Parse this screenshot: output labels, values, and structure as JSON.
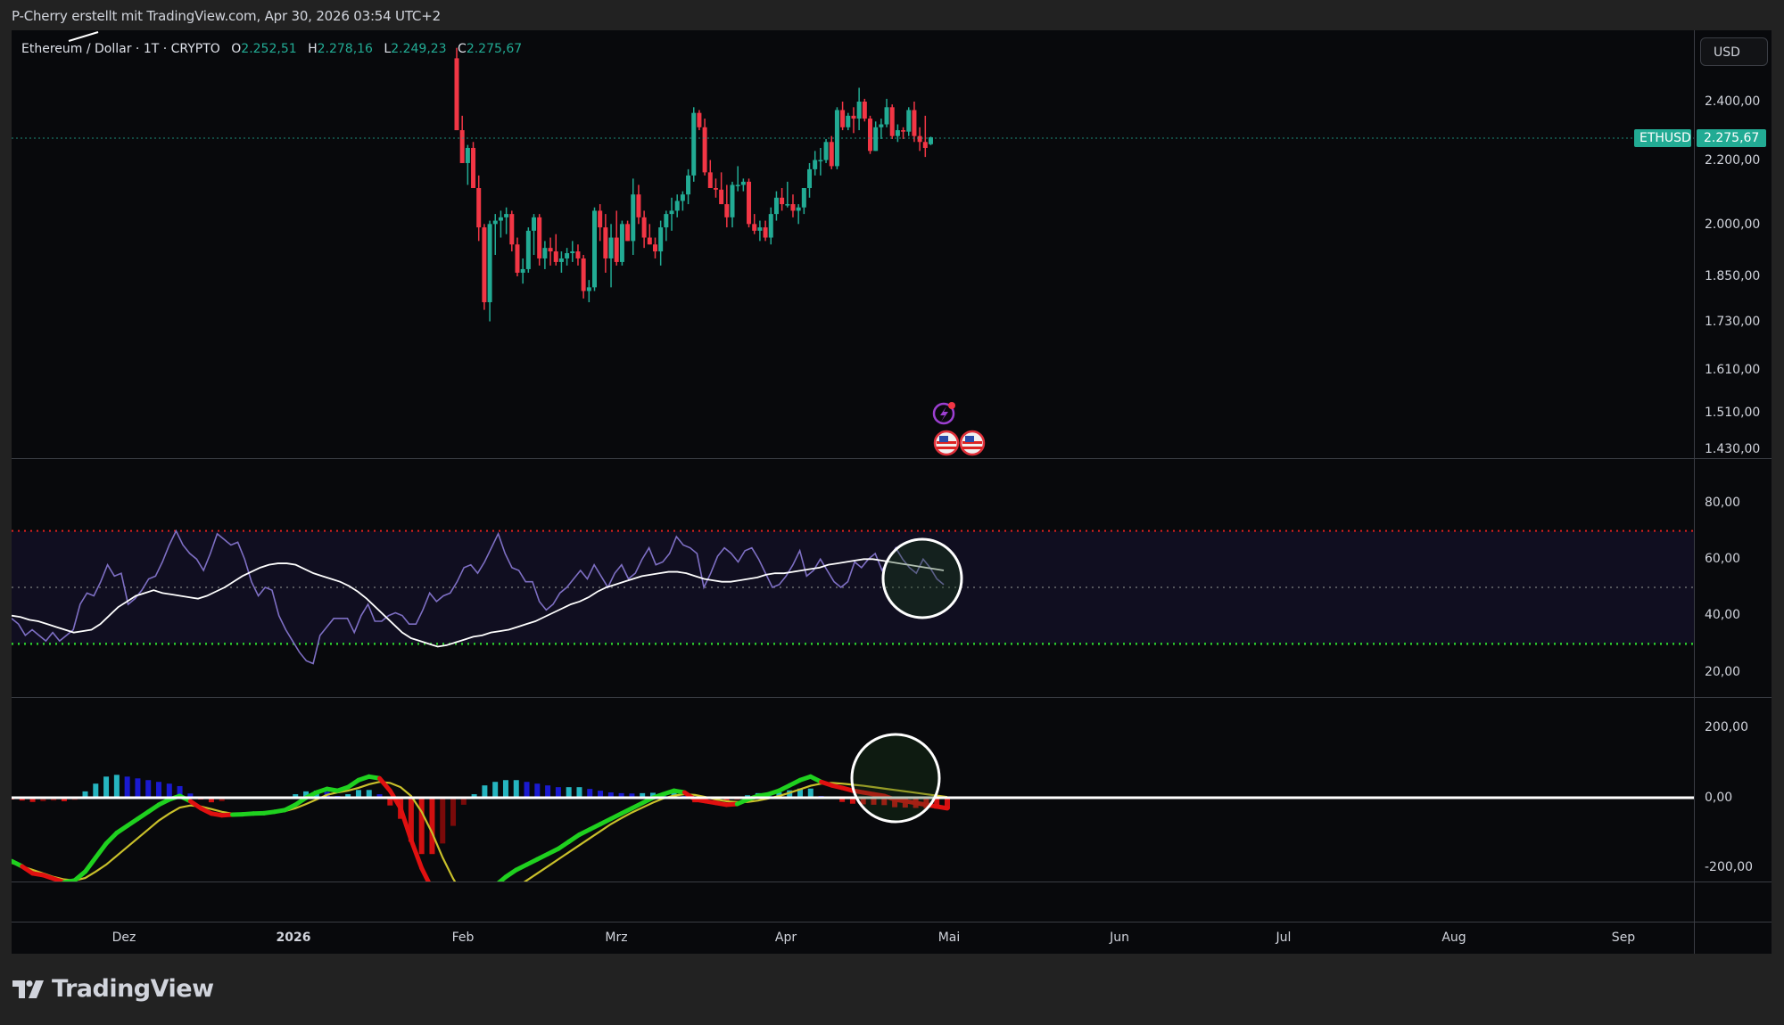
{
  "header": {
    "credit": "P-Cherry erstellt mit TradingView.com, Apr 30, 2026 03:54 UTC+2"
  },
  "legend": {
    "symbol": "Ethereum / Dollar · 1T · CRYPTO",
    "o_label": "O",
    "o_value": "2.252,51",
    "h_label": "H",
    "h_value": "2.278,16",
    "l_label": "L",
    "l_value": "2.249,23",
    "c_label": "C",
    "c_value": "2.275,67"
  },
  "currency_button": "USD",
  "price_tag": {
    "symbol": "ETHUSD",
    "value": "2.275,67",
    "color": "#22ab94"
  },
  "price_axis": [
    "2.400,00",
    "2.200,00",
    "2.000,00",
    "1.850,00",
    "1.730,00",
    "1.610,00",
    "1.510,00",
    "1.430,00"
  ],
  "rsi_axis": [
    "80,00",
    "60,00",
    "40,00",
    "20,00"
  ],
  "macd_axis": [
    "200,00",
    "0,00",
    "-200,00"
  ],
  "time_axis": [
    {
      "label": "Dez",
      "bold": false
    },
    {
      "label": "2026",
      "bold": true
    },
    {
      "label": "Feb",
      "bold": false
    },
    {
      "label": "Mrz",
      "bold": false
    },
    {
      "label": "Apr",
      "bold": false
    },
    {
      "label": "Mai",
      "bold": false
    },
    {
      "label": "Jun",
      "bold": false
    },
    {
      "label": "Jul",
      "bold": false
    },
    {
      "label": "Aug",
      "bold": false
    },
    {
      "label": "Sep",
      "bold": false
    }
  ],
  "brand": "TradingView",
  "colors": {
    "up": "#22ab94",
    "down": "#f23645",
    "rsi": "#7e6fc4",
    "rsi_ma": "#ffffff",
    "overbought": "#e0201f",
    "oversold": "#2ed12e",
    "macd_up": "#1fd11f",
    "macd_down": "#e01010",
    "signal": "#c9c02a",
    "hist_pos_strong": "#26b5c0",
    "hist_pos_weak": "#1a1ad0",
    "hist_neg_strong": "#d01010",
    "hist_neg_weak": "#7a0a0a"
  },
  "chart_data": [
    {
      "type": "candlestick",
      "title": "Ethereum / Dollar · 1T · CRYPTO",
      "ylabel": "USD",
      "yscale": "log",
      "ylim": [
        1430,
        2560
      ],
      "x_ticks": [
        "Dez",
        "2026",
        "Feb",
        "Mrz",
        "Apr",
        "Mai",
        "Jun",
        "Jul",
        "Aug",
        "Sep"
      ],
      "last": {
        "open": 2252.51,
        "high": 2278.16,
        "low": 2249.23,
        "close": 2275.67
      },
      "candles": [
        [
          2560,
          2600,
          2300,
          2300
        ],
        [
          2300,
          2350,
          2190,
          2190
        ],
        [
          2190,
          2250,
          2120,
          2240
        ],
        [
          2240,
          2260,
          2110,
          2110
        ],
        [
          2110,
          2150,
          1950,
          1990
        ],
        [
          1990,
          2000,
          1760,
          1780
        ],
        [
          1780,
          2010,
          1730,
          2000
        ],
        [
          2000,
          2030,
          1910,
          2010
        ],
        [
          2010,
          2040,
          1960,
          2020
        ],
        [
          2020,
          2050,
          1970,
          2030
        ],
        [
          2030,
          2040,
          1920,
          1940
        ],
        [
          1940,
          1960,
          1850,
          1860
        ],
        [
          1860,
          1900,
          1830,
          1870
        ],
        [
          1870,
          1990,
          1860,
          1980
        ],
        [
          1980,
          2030,
          1910,
          2020
        ],
        [
          2020,
          2030,
          1880,
          1900
        ],
        [
          1900,
          1950,
          1870,
          1930
        ],
        [
          1930,
          1960,
          1880,
          1920
        ],
        [
          1920,
          1970,
          1880,
          1890
        ],
        [
          1890,
          1920,
          1860,
          1900
        ],
        [
          1900,
          1930,
          1880,
          1915
        ],
        [
          1915,
          1950,
          1890,
          1920
        ],
        [
          1920,
          1940,
          1880,
          1900
        ],
        [
          1900,
          1910,
          1790,
          1810
        ],
        [
          1810,
          1840,
          1780,
          1820
        ],
        [
          1820,
          2050,
          1810,
          2040
        ],
        [
          2040,
          2060,
          1950,
          1990
        ],
        [
          1990,
          2030,
          1860,
          1900
        ],
        [
          1900,
          2000,
          1820,
          1960
        ],
        [
          1960,
          2040,
          1880,
          1890
        ],
        [
          1890,
          2010,
          1880,
          2000
        ],
        [
          2000,
          2010,
          1950,
          1950
        ],
        [
          1950,
          2140,
          1910,
          2090
        ],
        [
          2090,
          2120,
          2000,
          2020
        ],
        [
          2020,
          2040,
          1930,
          1960
        ],
        [
          1960,
          2000,
          1940,
          1940
        ],
        [
          1940,
          1960,
          1900,
          1920
        ],
        [
          1920,
          2010,
          1880,
          1990
        ],
        [
          1990,
          2040,
          1950,
          2030
        ],
        [
          2030,
          2080,
          1980,
          2040
        ],
        [
          2040,
          2090,
          2020,
          2070
        ],
        [
          2070,
          2100,
          2040,
          2090
        ],
        [
          2090,
          2170,
          2060,
          2150
        ],
        [
          2150,
          2380,
          2130,
          2360
        ],
        [
          2360,
          2370,
          2300,
          2310
        ],
        [
          2310,
          2340,
          2150,
          2160
        ],
        [
          2160,
          2200,
          2110,
          2110
        ],
        [
          2110,
          2140,
          2080,
          2105
        ],
        [
          2105,
          2160,
          2060,
          2060
        ],
        [
          2060,
          2120,
          1990,
          2020
        ],
        [
          2020,
          2130,
          1990,
          2120
        ],
        [
          2120,
          2180,
          2100,
          2120
        ],
        [
          2120,
          2140,
          2100,
          2130
        ],
        [
          2130,
          2140,
          1990,
          2000
        ],
        [
          2000,
          2030,
          1970,
          1980
        ],
        [
          1980,
          2010,
          1950,
          1990
        ],
        [
          1990,
          2010,
          1950,
          1960
        ],
        [
          1960,
          2050,
          1940,
          2030
        ],
        [
          2030,
          2100,
          2010,
          2080
        ],
        [
          2080,
          2110,
          2040,
          2060
        ],
        [
          2060,
          2130,
          2050,
          2060
        ],
        [
          2060,
          2090,
          2020,
          2040
        ],
        [
          2040,
          2060,
          2000,
          2050
        ],
        [
          2050,
          2090,
          2030,
          2110
        ],
        [
          2110,
          2190,
          2080,
          2170
        ],
        [
          2170,
          2230,
          2150,
          2200
        ],
        [
          2200,
          2240,
          2150,
          2200
        ],
        [
          2200,
          2270,
          2190,
          2260
        ],
        [
          2260,
          2280,
          2170,
          2180
        ],
        [
          2180,
          2380,
          2170,
          2370
        ],
        [
          2370,
          2400,
          2300,
          2310
        ],
        [
          2310,
          2360,
          2300,
          2350
        ],
        [
          2350,
          2380,
          2290,
          2340
        ],
        [
          2340,
          2450,
          2300,
          2400
        ],
        [
          2400,
          2410,
          2330,
          2340
        ],
        [
          2340,
          2350,
          2220,
          2230
        ],
        [
          2230,
          2330,
          2230,
          2310
        ],
        [
          2310,
          2340,
          2270,
          2320
        ],
        [
          2320,
          2410,
          2310,
          2380
        ],
        [
          2380,
          2390,
          2270,
          2280
        ],
        [
          2280,
          2320,
          2260,
          2300
        ],
        [
          2300,
          2310,
          2270,
          2295
        ],
        [
          2295,
          2380,
          2280,
          2370
        ],
        [
          2370,
          2400,
          2260,
          2280
        ],
        [
          2280,
          2310,
          2230,
          2260
        ],
        [
          2260,
          2350,
          2210,
          2240
        ],
        [
          2252.51,
          2278.16,
          2249.23,
          2275.67
        ]
      ]
    },
    {
      "type": "line",
      "title": "RSI",
      "ylim": [
        10,
        90
      ],
      "levels": {
        "overbought": 70,
        "middle": 50,
        "oversold": 30
      },
      "y_ticks": [
        80,
        60,
        40,
        20
      ],
      "series": [
        {
          "name": "RSI",
          "values": [
            39,
            37,
            33,
            35,
            33,
            31,
            34,
            31,
            33,
            35,
            44,
            48,
            47,
            52,
            58,
            54,
            55,
            44,
            46,
            49,
            53,
            54,
            59,
            65,
            70,
            65,
            62,
            60,
            56,
            62,
            69,
            67,
            65,
            66,
            60,
            52,
            47,
            50,
            49,
            40,
            35,
            31,
            27,
            24,
            23,
            33,
            36,
            39,
            39,
            39,
            34,
            40,
            44,
            38,
            38,
            40,
            41,
            40,
            37,
            37,
            42,
            48,
            45,
            47,
            48,
            52,
            57,
            58,
            55,
            59,
            64,
            69,
            62,
            57,
            56,
            52,
            52,
            45,
            42,
            44,
            48,
            50,
            53,
            56,
            53,
            58,
            54,
            50,
            55,
            58,
            53,
            55,
            60,
            64,
            58,
            59,
            62,
            68,
            65,
            64,
            62,
            50,
            55,
            61,
            64,
            62,
            59,
            63,
            64,
            60,
            55,
            50,
            51,
            54,
            58,
            63,
            54,
            56,
            60,
            56,
            52,
            50,
            52,
            59,
            57,
            60,
            62,
            56,
            60,
            64,
            60,
            57,
            55,
            60,
            57,
            53,
            51
          ]
        },
        {
          "name": "RSI-MA",
          "values": [
            40,
            39.5,
            38.5,
            38,
            37,
            36,
            35,
            34,
            34.5,
            35,
            37,
            40,
            43,
            45,
            47,
            48,
            49,
            48,
            47.5,
            47,
            46.5,
            46,
            47,
            48.5,
            50,
            52,
            54,
            55.5,
            57,
            58,
            58.5,
            58.5,
            58,
            56.5,
            55,
            54,
            53,
            52,
            50.5,
            48.5,
            46,
            43,
            40,
            37,
            34,
            32,
            31,
            30,
            29,
            29.5,
            30.5,
            31.5,
            32.5,
            33,
            34,
            34.5,
            35,
            36,
            37,
            38,
            39.5,
            41,
            42.5,
            44,
            45,
            46.5,
            48.5,
            50,
            51,
            52,
            53,
            54,
            54.5,
            55,
            55.5,
            55.5,
            55,
            54,
            53,
            52.5,
            52,
            52,
            52.5,
            53,
            53.5,
            54.5,
            55,
            55,
            55.5,
            56,
            56.5,
            57,
            58,
            58.5,
            59,
            59.5,
            60,
            60,
            59.5,
            59,
            58.5,
            58,
            57.5,
            57,
            56.5,
            56
          ]
        }
      ]
    },
    {
      "type": "line",
      "title": "MACD",
      "ylim": [
        -240,
        300
      ],
      "y_ticks": [
        200,
        0,
        -200
      ],
      "series": [
        {
          "name": "MACD",
          "values": [
            -180,
            -195,
            -215,
            -220,
            -230,
            -240,
            -235,
            -210,
            -170,
            -130,
            -100,
            -80,
            -60,
            -40,
            -20,
            -5,
            5,
            -10,
            -30,
            -45,
            -50,
            -48,
            -47,
            -45,
            -44,
            -40,
            -35,
            -20,
            0,
            15,
            25,
            20,
            30,
            50,
            60,
            55,
            20,
            -30,
            -120,
            -200,
            -260,
            -300,
            -310,
            -300,
            -290,
            -270,
            -250,
            -225,
            -205,
            -190,
            -175,
            -160,
            -145,
            -125,
            -105,
            -90,
            -75,
            -60,
            -45,
            -30,
            -15,
            0,
            10,
            20,
            15,
            -5,
            -10,
            -15,
            -20,
            -18,
            -5,
            5,
            10,
            20,
            35,
            50,
            60,
            45,
            35,
            28,
            20,
            15,
            10,
            5,
            -5,
            -10,
            -15,
            -20,
            -25,
            -30
          ]
        },
        {
          "name": "Signal",
          "values": [
            -185,
            -195,
            -205,
            -215,
            -225,
            -232,
            -235,
            -228,
            -210,
            -190,
            -165,
            -140,
            -115,
            -90,
            -65,
            -45,
            -28,
            -22,
            -25,
            -32,
            -40,
            -45,
            -48,
            -47,
            -45,
            -42,
            -38,
            -30,
            -18,
            -5,
            8,
            15,
            20,
            28,
            38,
            45,
            42,
            30,
            5,
            -40,
            -100,
            -170,
            -230,
            -280,
            -300,
            -305,
            -295,
            -275,
            -255,
            -235,
            -215,
            -195,
            -175,
            -155,
            -135,
            -115,
            -95,
            -75,
            -58,
            -42,
            -28,
            -14,
            -2,
            6,
            10,
            8,
            2,
            -5,
            -10,
            -12,
            -12,
            -8,
            -2,
            5,
            14,
            24,
            34,
            40,
            42,
            40,
            37,
            34,
            30,
            26,
            22,
            18,
            14,
            10,
            6,
            2
          ]
        },
        {
          "name": "Histogram",
          "values": [
            -5,
            -8,
            -12,
            -10,
            -8,
            -10,
            -6,
            18,
            40,
            60,
            65,
            60,
            55,
            50,
            45,
            40,
            33,
            12,
            -5,
            -13,
            -10,
            -3,
            1,
            2,
            1,
            2,
            3,
            10,
            18,
            20,
            17,
            5,
            10,
            22,
            22,
            10,
            -22,
            -60,
            -125,
            -160,
            -160,
            -130,
            -80,
            -20,
            10,
            35,
            45,
            50,
            50,
            45,
            40,
            35,
            30,
            30,
            30,
            25,
            20,
            15,
            13,
            12,
            13,
            14,
            12,
            14,
            5,
            -13,
            -12,
            -10,
            -10,
            -6,
            7,
            13,
            12,
            15,
            21,
            26,
            26,
            5,
            -2,
            -12,
            -17,
            -19,
            -20,
            -21,
            -27,
            -28,
            -29,
            -30,
            -31,
            -32
          ]
        }
      ]
    }
  ]
}
